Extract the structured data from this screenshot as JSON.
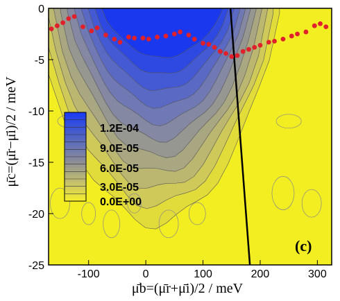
{
  "chart_data": {
    "type": "heatmap",
    "panel_label": "(c)",
    "xlabel": "μ̄b=(μ̄r+μ̄i)/2  /  meV",
    "ylabel": "μ̄c=(μ̄r−μ̄i)/2  /  meV",
    "xlim": [
      -170,
      325
    ],
    "ylim": [
      -25,
      0
    ],
    "x_ticks": [
      -100,
      0,
      100,
      200,
      300
    ],
    "y_ticks": [
      0,
      -5,
      -10,
      -15,
      -20,
      -25
    ],
    "x_tick_labels": [
      "-100",
      "0",
      "100",
      "200",
      "300"
    ],
    "y_tick_labels": [
      "0",
      "-5",
      "-10",
      "-15",
      "-20",
      "-25"
    ],
    "colorbar": {
      "labels": [
        "1.2E-04",
        "9.0E-05",
        "6.0E-05",
        "3.0E-05",
        "0.0E+00"
      ],
      "values": [
        0.00012,
        9e-05,
        6e-05,
        3e-05,
        0.0
      ],
      "colors": {
        "high": "#1030f0",
        "mid": "#8a8ea0",
        "low": "#f5f01e"
      }
    },
    "peak_region": {
      "x_range": [
        -130,
        200
      ],
      "value_max": 0.00012
    },
    "boundary_line": {
      "points": [
        [
          148,
          0
        ],
        [
          182,
          -25
        ]
      ],
      "color": "#000000"
    },
    "markers": {
      "color": "#e0202a",
      "points": [
        [
          -165,
          -2.0
        ],
        [
          -155,
          -1.7
        ],
        [
          -145,
          -1.4
        ],
        [
          -135,
          -1.0
        ],
        [
          -125,
          -0.8
        ],
        [
          -110,
          -1.8
        ],
        [
          -95,
          -2.2
        ],
        [
          -85,
          -1.9
        ],
        [
          -70,
          -2.6
        ],
        [
          -55,
          -3.0
        ],
        [
          -45,
          -3.3
        ],
        [
          -30,
          -2.8
        ],
        [
          -20,
          -2.9
        ],
        [
          -5,
          -2.9
        ],
        [
          5,
          -3.0
        ],
        [
          20,
          -2.8
        ],
        [
          35,
          -2.7
        ],
        [
          50,
          -2.5
        ],
        [
          60,
          -2.3
        ],
        [
          75,
          -2.6
        ],
        [
          85,
          -3.0
        ],
        [
          100,
          -3.4
        ],
        [
          110,
          -3.5
        ],
        [
          120,
          -3.8
        ],
        [
          130,
          -4.2
        ],
        [
          140,
          -4.4
        ],
        [
          150,
          -4.7
        ],
        [
          160,
          -4.6
        ],
        [
          170,
          -4.2
        ],
        [
          180,
          -4.0
        ],
        [
          190,
          -3.8
        ],
        [
          200,
          -3.6
        ],
        [
          215,
          -3.3
        ],
        [
          225,
          -3.2
        ],
        [
          240,
          -3.0
        ],
        [
          255,
          -2.7
        ],
        [
          265,
          -2.5
        ],
        [
          280,
          -2.3
        ],
        [
          295,
          -1.7
        ],
        [
          305,
          -1.5
        ],
        [
          315,
          -1.8
        ]
      ]
    }
  }
}
